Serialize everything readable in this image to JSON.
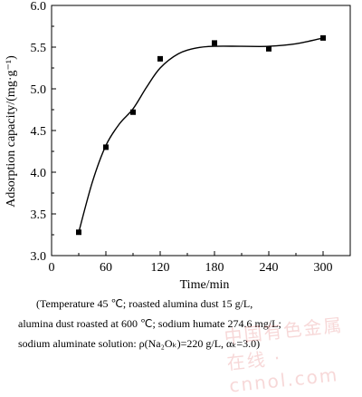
{
  "chart_data": {
    "type": "scatter",
    "xlabel": "Time/min",
    "ylabel": "Adsorption capacity/(mg·g⁻¹)",
    "xlim": [
      0,
      330
    ],
    "ylim": [
      3.0,
      6.0
    ],
    "x_ticks": [
      "0",
      "60",
      "120",
      "180",
      "240",
      "300"
    ],
    "y_ticks": [
      "3.0",
      "3.5",
      "4.0",
      "4.5",
      "5.0",
      "5.5",
      "6.0"
    ],
    "points": [
      {
        "x": 30,
        "y": 3.28
      },
      {
        "x": 60,
        "y": 4.3
      },
      {
        "x": 90,
        "y": 4.72
      },
      {
        "x": 120,
        "y": 5.36
      },
      {
        "x": 180,
        "y": 5.55
      },
      {
        "x": 240,
        "y": 5.48
      },
      {
        "x": 300,
        "y": 5.61
      }
    ],
    "fit_curve": [
      {
        "x": 30,
        "y": 3.28
      },
      {
        "x": 45,
        "y": 3.88
      },
      {
        "x": 60,
        "y": 4.32
      },
      {
        "x": 75,
        "y": 4.58
      },
      {
        "x": 90,
        "y": 4.76
      },
      {
        "x": 105,
        "y": 5.02
      },
      {
        "x": 120,
        "y": 5.25
      },
      {
        "x": 140,
        "y": 5.42
      },
      {
        "x": 160,
        "y": 5.49
      },
      {
        "x": 180,
        "y": 5.51
      },
      {
        "x": 210,
        "y": 5.51
      },
      {
        "x": 240,
        "y": 5.51
      },
      {
        "x": 270,
        "y": 5.54
      },
      {
        "x": 300,
        "y": 5.61
      }
    ],
    "grid": false
  },
  "caption": {
    "line1": "(Temperature 45 ℃; roasted alumina dust 15 g/L,",
    "line2": "alumina dust roasted at 600 ℃; sodium humate 274.6 mg/L;",
    "line3": "sodium aluminate solution: ρ(Na₂Oₖ)=220 g/L, αₖ=3.0)"
  },
  "watermark": "中国有色金属在线 · cnnol.com",
  "colors": {
    "line": "#000000",
    "marker": "#000000",
    "axis": "#000000"
  }
}
